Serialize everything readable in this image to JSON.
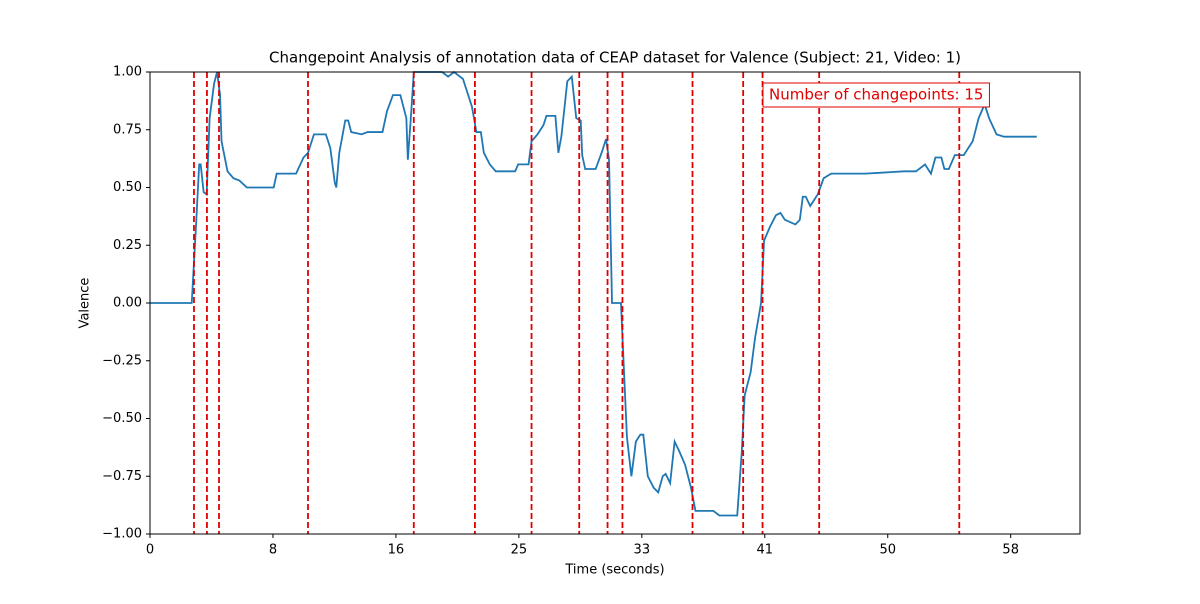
{
  "chart_data": {
    "type": "line",
    "title": "Changepoint Analysis of annotation data of CEAP dataset for Valence (Subject: 21, Video: 1)",
    "x_label": "Time (seconds)",
    "y_label": "Valence",
    "annotation": "Number of changepoints: 15",
    "color": "#1f77b4",
    "x": [
      0,
      2.8,
      3.1,
      3.3,
      3.4,
      3.6,
      3.8,
      4.0,
      4.3,
      4.5,
      4.7,
      4.8,
      5.2,
      5.6,
      6.0,
      6.5,
      8.0,
      8.3,
      8.5,
      9.8,
      10.3,
      10.6,
      11.0,
      11.8,
      12.1,
      12.4,
      12.5,
      12.7,
      13.1,
      13.3,
      13.5,
      14.2,
      14.6,
      15.6,
      15.9,
      16.3,
      16.8,
      17.2,
      17.3,
      17.5,
      17.7,
      19.6,
      20.0,
      20.4,
      21.0,
      21.6,
      21.9,
      22.2,
      22.4,
      22.8,
      23.2,
      24.5,
      24.7,
      25.4,
      25.6,
      26.0,
      26.4,
      26.6,
      27.2,
      27.4,
      27.6,
      28.0,
      28.3,
      28.6,
      28.9,
      29.0,
      29.2,
      29.9,
      30.3,
      30.6,
      30.8,
      31.0,
      31.6,
      32.0,
      32.3,
      32.6,
      32.9,
      33.1,
      33.4,
      33.8,
      34.1,
      34.4,
      34.6,
      34.9,
      35.2,
      35.5,
      35.9,
      36.3,
      36.6,
      37.8,
      38.2,
      39.4,
      39.7,
      39.9,
      40.3,
      40.6,
      41.0,
      41.2,
      41.6,
      42.0,
      42.3,
      42.6,
      43.3,
      43.6,
      43.8,
      44.0,
      44.3,
      44.8,
      45.2,
      45.7,
      48.0,
      50.6,
      51.4,
      52.0,
      52.4,
      52.7,
      53.1,
      53.3,
      53.6,
      54.0,
      54.6,
      55.2,
      55.6,
      56.0,
      56.3,
      56.8,
      57.3,
      59.5
    ],
    "values": [
      0,
      0,
      0.35,
      0.6,
      0.6,
      0.48,
      0.47,
      0.8,
      0.95,
      1.0,
      0.9,
      0.7,
      0.57,
      0.54,
      0.53,
      0.5,
      0.5,
      0.5,
      0.56,
      0.56,
      0.63,
      0.65,
      0.73,
      0.73,
      0.67,
      0.52,
      0.5,
      0.65,
      0.79,
      0.79,
      0.74,
      0.73,
      0.74,
      0.74,
      0.83,
      0.9,
      0.9,
      0.8,
      0.62,
      0.8,
      1.0,
      1.0,
      0.98,
      1.0,
      0.97,
      0.85,
      0.74,
      0.74,
      0.65,
      0.6,
      0.57,
      0.57,
      0.6,
      0.6,
      0.7,
      0.73,
      0.77,
      0.81,
      0.81,
      0.65,
      0.72,
      0.96,
      0.98,
      0.8,
      0.79,
      0.64,
      0.58,
      0.58,
      0.65,
      0.71,
      0.62,
      0.0,
      0.0,
      -0.58,
      -0.75,
      -0.6,
      -0.57,
      -0.57,
      -0.75,
      -0.8,
      -0.82,
      -0.75,
      -0.74,
      -0.78,
      -0.6,
      -0.64,
      -0.7,
      -0.8,
      -0.9,
      -0.9,
      -0.92,
      -0.92,
      -0.65,
      -0.4,
      -0.3,
      -0.15,
      0.0,
      0.27,
      0.33,
      0.38,
      0.39,
      0.36,
      0.34,
      0.36,
      0.46,
      0.46,
      0.42,
      0.47,
      0.54,
      0.56,
      0.56,
      0.57,
      0.57,
      0.6,
      0.56,
      0.63,
      0.63,
      0.58,
      0.58,
      0.64,
      0.64,
      0.7,
      0.8,
      0.86,
      0.8,
      0.73,
      0.72,
      0.72
    ],
    "changepoints": {
      "color": "#e00000",
      "values": [
        2.95,
        3.82,
        4.63,
        10.6,
        17.7,
        21.8,
        25.6,
        28.8,
        30.7,
        31.7,
        36.4,
        39.8,
        41.1,
        44.9,
        54.3
      ]
    },
    "xlim": [
      0,
      62.4
    ],
    "xticks": [
      0,
      {
        "value": 8.25,
        "label": "8"
      },
      {
        "value": 16.5,
        "label": "16"
      },
      {
        "value": 24.75,
        "label": "25"
      },
      33,
      {
        "value": 41.25,
        "label": "41"
      },
      {
        "value": 49.5,
        "label": "50"
      },
      {
        "value": 57.75,
        "label": "58"
      }
    ],
    "ylim": [
      -1,
      1
    ],
    "yticks": [
      {
        "value": -1,
        "label": "−1.00"
      },
      {
        "value": -0.75,
        "label": "−0.75"
      },
      {
        "value": -0.5,
        "label": "−0.50"
      },
      {
        "value": -0.25,
        "label": "−0.25"
      },
      {
        "value": 0,
        "label": "0.00"
      },
      {
        "value": 0.25,
        "label": "0.25"
      },
      {
        "value": 0.5,
        "label": "0.50"
      },
      {
        "value": 0.75,
        "label": "0.75"
      },
      {
        "value": 1,
        "label": "1.00"
      }
    ]
  }
}
